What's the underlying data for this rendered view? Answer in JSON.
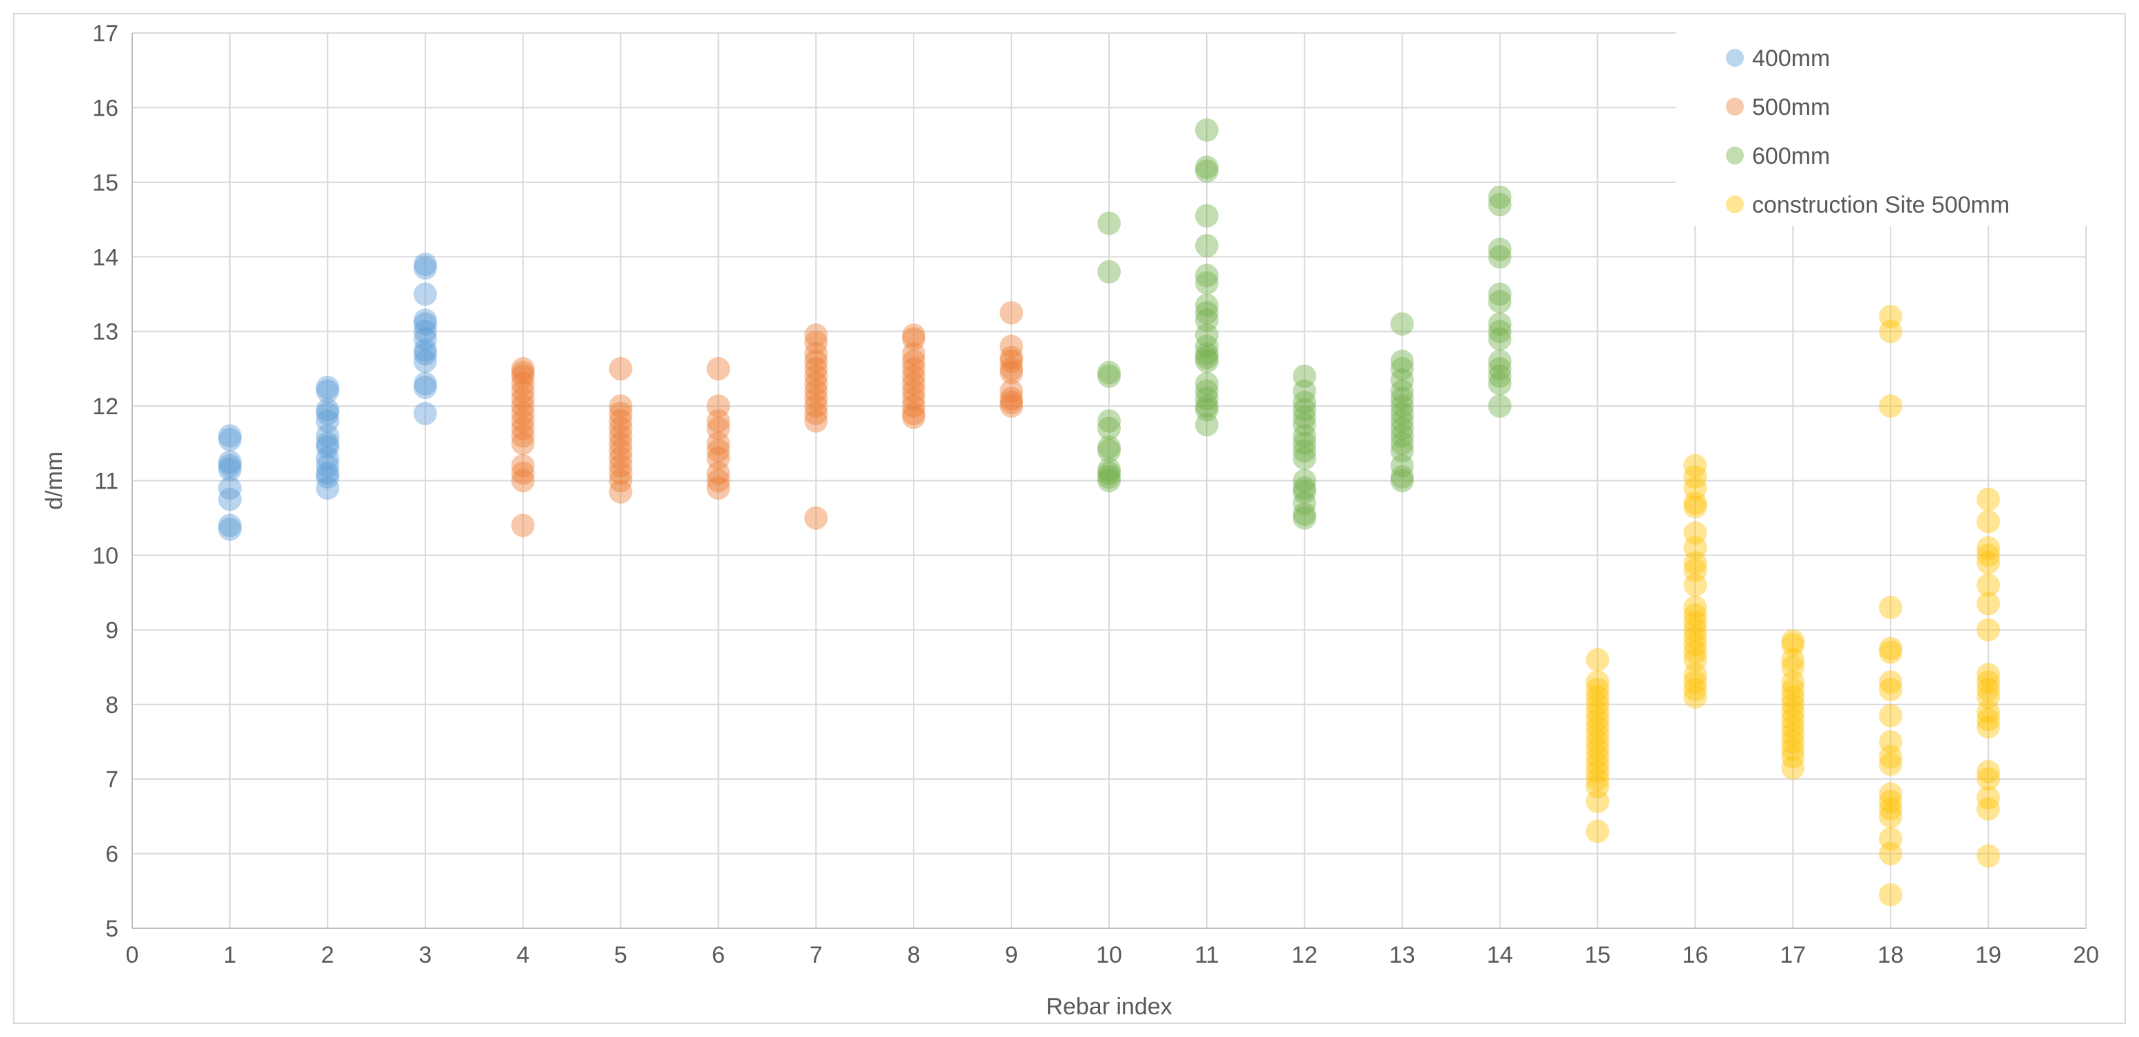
{
  "chart_data": {
    "type": "scatter",
    "title": "",
    "xlabel": "Rebar index",
    "ylabel": "d/mm",
    "xlim": [
      0,
      20
    ],
    "ylim": [
      5,
      17
    ],
    "x_ticks": [
      "0",
      "1",
      "2",
      "3",
      "4",
      "5",
      "6",
      "7",
      "8",
      "9",
      "10",
      "11",
      "12",
      "13",
      "14",
      "15",
      "16",
      "17",
      "18",
      "19",
      "20"
    ],
    "y_ticks": [
      "5",
      "6",
      "7",
      "8",
      "9",
      "10",
      "11",
      "12",
      "13",
      "14",
      "15",
      "16",
      "17"
    ],
    "grid": true,
    "legend_position": "top-right",
    "series": [
      {
        "name": "400mm",
        "color": "#5b9bd5",
        "points": [
          [
            1,
            11.6
          ],
          [
            1,
            11.55
          ],
          [
            1,
            11.25
          ],
          [
            1,
            11.2
          ],
          [
            1,
            11.15
          ],
          [
            1,
            10.9
          ],
          [
            1,
            10.75
          ],
          [
            1,
            10.4
          ],
          [
            1,
            10.35
          ],
          [
            2,
            12.25
          ],
          [
            2,
            12.2
          ],
          [
            2,
            11.95
          ],
          [
            2,
            11.9
          ],
          [
            2,
            11.8
          ],
          [
            2,
            11.6
          ],
          [
            2,
            11.5
          ],
          [
            2,
            11.45
          ],
          [
            2,
            11.3
          ],
          [
            2,
            11.2
          ],
          [
            2,
            11.1
          ],
          [
            2,
            11.05
          ],
          [
            2,
            10.9
          ],
          [
            3,
            13.9
          ],
          [
            3,
            13.85
          ],
          [
            3,
            13.5
          ],
          [
            3,
            13.15
          ],
          [
            3,
            13.1
          ],
          [
            3,
            13.0
          ],
          [
            3,
            12.9
          ],
          [
            3,
            12.75
          ],
          [
            3,
            12.7
          ],
          [
            3,
            12.6
          ],
          [
            3,
            12.3
          ],
          [
            3,
            12.25
          ],
          [
            3,
            11.9
          ]
        ]
      },
      {
        "name": "500mm",
        "color": "#ed7d31",
        "points": [
          [
            4,
            12.5
          ],
          [
            4,
            12.45
          ],
          [
            4,
            12.4
          ],
          [
            4,
            12.3
          ],
          [
            4,
            12.2
          ],
          [
            4,
            12.1
          ],
          [
            4,
            12.0
          ],
          [
            4,
            11.9
          ],
          [
            4,
            11.8
          ],
          [
            4,
            11.7
          ],
          [
            4,
            11.6
          ],
          [
            4,
            11.5
          ],
          [
            4,
            11.2
          ],
          [
            4,
            11.1
          ],
          [
            4,
            11.0
          ],
          [
            4,
            10.4
          ],
          [
            5,
            12.5
          ],
          [
            5,
            12.0
          ],
          [
            5,
            11.9
          ],
          [
            5,
            11.8
          ],
          [
            5,
            11.7
          ],
          [
            5,
            11.6
          ],
          [
            5,
            11.5
          ],
          [
            5,
            11.4
          ],
          [
            5,
            11.3
          ],
          [
            5,
            11.2
          ],
          [
            5,
            11.1
          ],
          [
            5,
            11.0
          ],
          [
            5,
            10.85
          ],
          [
            6,
            12.5
          ],
          [
            6,
            12.0
          ],
          [
            6,
            11.8
          ],
          [
            6,
            11.7
          ],
          [
            6,
            11.5
          ],
          [
            6,
            11.4
          ],
          [
            6,
            11.3
          ],
          [
            6,
            11.1
          ],
          [
            6,
            11.0
          ],
          [
            6,
            10.9
          ],
          [
            7,
            12.95
          ],
          [
            7,
            12.85
          ],
          [
            7,
            12.7
          ],
          [
            7,
            12.6
          ],
          [
            7,
            12.5
          ],
          [
            7,
            12.4
          ],
          [
            7,
            12.3
          ],
          [
            7,
            12.2
          ],
          [
            7,
            12.1
          ],
          [
            7,
            12.0
          ],
          [
            7,
            11.9
          ],
          [
            7,
            11.8
          ],
          [
            7,
            10.5
          ],
          [
            8,
            12.95
          ],
          [
            8,
            12.9
          ],
          [
            8,
            12.7
          ],
          [
            8,
            12.6
          ],
          [
            8,
            12.5
          ],
          [
            8,
            12.4
          ],
          [
            8,
            12.3
          ],
          [
            8,
            12.2
          ],
          [
            8,
            12.1
          ],
          [
            8,
            12.0
          ],
          [
            8,
            11.9
          ],
          [
            8,
            11.85
          ],
          [
            9,
            13.25
          ],
          [
            9,
            12.8
          ],
          [
            9,
            12.65
          ],
          [
            9,
            12.6
          ],
          [
            9,
            12.5
          ],
          [
            9,
            12.45
          ],
          [
            9,
            12.2
          ],
          [
            9,
            12.1
          ],
          [
            9,
            12.05
          ],
          [
            9,
            12.0
          ]
        ]
      },
      {
        "name": "600mm",
        "color": "#70ad47",
        "points": [
          [
            10,
            14.45
          ],
          [
            10,
            13.8
          ],
          [
            10,
            12.45
          ],
          [
            10,
            12.4
          ],
          [
            10,
            11.8
          ],
          [
            10,
            11.7
          ],
          [
            10,
            11.45
          ],
          [
            10,
            11.4
          ],
          [
            10,
            11.15
          ],
          [
            10,
            11.1
          ],
          [
            10,
            11.05
          ],
          [
            10,
            11.0
          ],
          [
            11,
            15.7
          ],
          [
            11,
            15.2
          ],
          [
            11,
            15.15
          ],
          [
            11,
            14.55
          ],
          [
            11,
            14.15
          ],
          [
            11,
            13.75
          ],
          [
            11,
            13.65
          ],
          [
            11,
            13.35
          ],
          [
            11,
            13.25
          ],
          [
            11,
            13.15
          ],
          [
            11,
            12.95
          ],
          [
            11,
            12.8
          ],
          [
            11,
            12.7
          ],
          [
            11,
            12.65
          ],
          [
            11,
            12.6
          ],
          [
            11,
            12.3
          ],
          [
            11,
            12.2
          ],
          [
            11,
            12.1
          ],
          [
            11,
            12.0
          ],
          [
            11,
            11.95
          ],
          [
            11,
            11.75
          ],
          [
            12,
            12.4
          ],
          [
            12,
            12.2
          ],
          [
            12,
            12.05
          ],
          [
            12,
            11.95
          ],
          [
            12,
            11.85
          ],
          [
            12,
            11.75
          ],
          [
            12,
            11.6
          ],
          [
            12,
            11.5
          ],
          [
            12,
            11.4
          ],
          [
            12,
            11.3
          ],
          [
            12,
            11.0
          ],
          [
            12,
            10.9
          ],
          [
            12,
            10.85
          ],
          [
            12,
            10.7
          ],
          [
            12,
            10.55
          ],
          [
            12,
            10.5
          ],
          [
            13,
            13.1
          ],
          [
            13,
            12.6
          ],
          [
            13,
            12.5
          ],
          [
            13,
            12.35
          ],
          [
            13,
            12.2
          ],
          [
            13,
            12.1
          ],
          [
            13,
            12.0
          ],
          [
            13,
            11.9
          ],
          [
            13,
            11.8
          ],
          [
            13,
            11.7
          ],
          [
            13,
            11.6
          ],
          [
            13,
            11.5
          ],
          [
            13,
            11.4
          ],
          [
            13,
            11.2
          ],
          [
            13,
            11.05
          ],
          [
            13,
            11.0
          ],
          [
            14,
            14.8
          ],
          [
            14,
            14.7
          ],
          [
            14,
            14.1
          ],
          [
            14,
            14.0
          ],
          [
            14,
            13.5
          ],
          [
            14,
            13.4
          ],
          [
            14,
            13.1
          ],
          [
            14,
            13.0
          ],
          [
            14,
            12.9
          ],
          [
            14,
            12.6
          ],
          [
            14,
            12.5
          ],
          [
            14,
            12.4
          ],
          [
            14,
            12.3
          ],
          [
            14,
            12.0
          ]
        ]
      },
      {
        "name": "construction Site 500mm",
        "color": "#ffc000",
        "points": [
          [
            15,
            8.6
          ],
          [
            15,
            8.3
          ],
          [
            15,
            8.2
          ],
          [
            15,
            8.1
          ],
          [
            15,
            8.0
          ],
          [
            15,
            7.9
          ],
          [
            15,
            7.8
          ],
          [
            15,
            7.7
          ],
          [
            15,
            7.6
          ],
          [
            15,
            7.5
          ],
          [
            15,
            7.4
          ],
          [
            15,
            7.3
          ],
          [
            15,
            7.2
          ],
          [
            15,
            7.1
          ],
          [
            15,
            7.0
          ],
          [
            15,
            6.9
          ],
          [
            15,
            6.7
          ],
          [
            15,
            6.3
          ],
          [
            16,
            11.2
          ],
          [
            16,
            11.05
          ],
          [
            16,
            10.9
          ],
          [
            16,
            10.7
          ],
          [
            16,
            10.65
          ],
          [
            16,
            10.3
          ],
          [
            16,
            10.1
          ],
          [
            16,
            9.9
          ],
          [
            16,
            9.8
          ],
          [
            16,
            9.6
          ],
          [
            16,
            9.3
          ],
          [
            16,
            9.2
          ],
          [
            16,
            9.1
          ],
          [
            16,
            9.0
          ],
          [
            16,
            8.9
          ],
          [
            16,
            8.8
          ],
          [
            16,
            8.7
          ],
          [
            16,
            8.6
          ],
          [
            16,
            8.4
          ],
          [
            16,
            8.3
          ],
          [
            16,
            8.2
          ],
          [
            16,
            8.1
          ],
          [
            17,
            8.85
          ],
          [
            17,
            8.8
          ],
          [
            17,
            8.6
          ],
          [
            17,
            8.5
          ],
          [
            17,
            8.3
          ],
          [
            17,
            8.2
          ],
          [
            17,
            8.1
          ],
          [
            17,
            8.0
          ],
          [
            17,
            7.9
          ],
          [
            17,
            7.8
          ],
          [
            17,
            7.7
          ],
          [
            17,
            7.6
          ],
          [
            17,
            7.5
          ],
          [
            17,
            7.4
          ],
          [
            17,
            7.3
          ],
          [
            17,
            7.15
          ],
          [
            18,
            13.2
          ],
          [
            18,
            13.0
          ],
          [
            18,
            12.0
          ],
          [
            18,
            9.3
          ],
          [
            18,
            8.75
          ],
          [
            18,
            8.7
          ],
          [
            18,
            8.3
          ],
          [
            18,
            8.2
          ],
          [
            18,
            7.85
          ],
          [
            18,
            7.5
          ],
          [
            18,
            7.3
          ],
          [
            18,
            7.2
          ],
          [
            18,
            6.8
          ],
          [
            18,
            6.7
          ],
          [
            18,
            6.6
          ],
          [
            18,
            6.5
          ],
          [
            18,
            6.2
          ],
          [
            18,
            6.0
          ],
          [
            18,
            5.45
          ],
          [
            19,
            10.75
          ],
          [
            19,
            10.45
          ],
          [
            19,
            10.1
          ],
          [
            19,
            10.0
          ],
          [
            19,
            9.9
          ],
          [
            19,
            9.6
          ],
          [
            19,
            9.35
          ],
          [
            19,
            9.0
          ],
          [
            19,
            8.4
          ],
          [
            19,
            8.3
          ],
          [
            19,
            8.2
          ],
          [
            19,
            8.1
          ],
          [
            19,
            7.9
          ],
          [
            19,
            7.8
          ],
          [
            19,
            7.7
          ],
          [
            19,
            7.1
          ],
          [
            19,
            7.0
          ],
          [
            19,
            6.75
          ],
          [
            19,
            6.6
          ],
          [
            19,
            5.97
          ]
        ]
      }
    ]
  }
}
